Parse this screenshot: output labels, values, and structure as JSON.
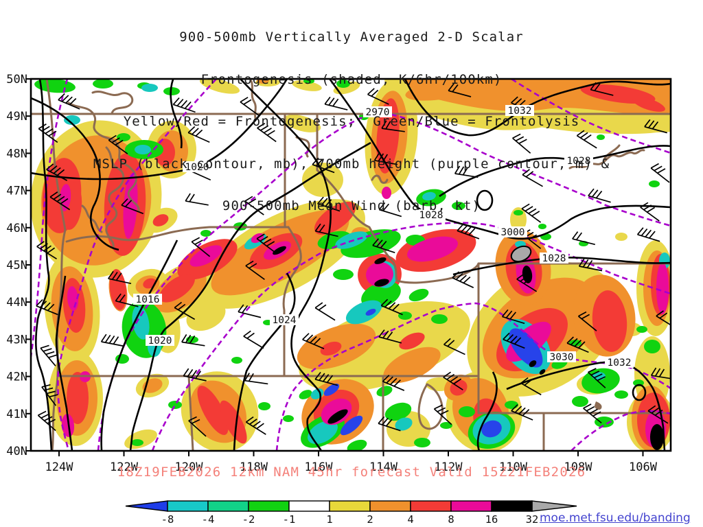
{
  "header": {
    "title_lines": [
      "900-500mb Vertically Averaged 2-D Scalar",
      "Frontogenesis (shaded, K/6hr/100km)",
      "Yellow/Red = Frontogenesis;  Green/Blue = Frontolysis",
      "MSLP (black contour, mb), 700mb height (purple contour, m) &",
      "900-500mb Mean Wind (barb, kt)"
    ]
  },
  "map": {
    "y_tick_labels": [
      "50N",
      "49N",
      "48N",
      "47N",
      "46N",
      "45N",
      "44N",
      "43N",
      "42N",
      "41N",
      "40N"
    ],
    "x_tick_labels": [
      "124W",
      "122W",
      "120W",
      "118W",
      "116W",
      "114W",
      "112W",
      "110W",
      "108W",
      "106W"
    ],
    "contour_labels": [
      "2970",
      "1032",
      "1028",
      "1020",
      "1028",
      "3000",
      "1028",
      "1016",
      "1024",
      "1020",
      "3030",
      "1032"
    ],
    "mslp_contour_color": "#000000",
    "height_contour_color": "#a800cc",
    "state_border_color": "#8b6a52",
    "frontogenesis_colors": {
      "yellow": "#e9d84b",
      "orange": "#f0912d",
      "red": "#f33b36",
      "magenta": "#ea0b99"
    },
    "frontolysis_colors": {
      "green": "#10d310",
      "teal": "#17c8be",
      "blue": "#2743ea"
    }
  },
  "caption": {
    "text": "18Z19FEB2026 12km NAM 45hr forecast Valid 15Z21FEB2026",
    "color": "#f4817a"
  },
  "colorbar": {
    "tick_labels": [
      "-8",
      "-4",
      "-2",
      "-1",
      "1",
      "2",
      "4",
      "8",
      "16",
      "32"
    ],
    "segment_colors": [
      "#18c9c9",
      "#12d288",
      "#12d212",
      "#ffffff",
      "#e8d83a",
      "#f0912d",
      "#f33b36",
      "#ea0b99",
      "#000000"
    ],
    "left_arrow_color": "#1f3de8",
    "right_arrow_color": "#a9a9a9"
  },
  "footer": {
    "link_text": "moe.met.fsu.edu/banding",
    "link_color": "#4343cf"
  }
}
